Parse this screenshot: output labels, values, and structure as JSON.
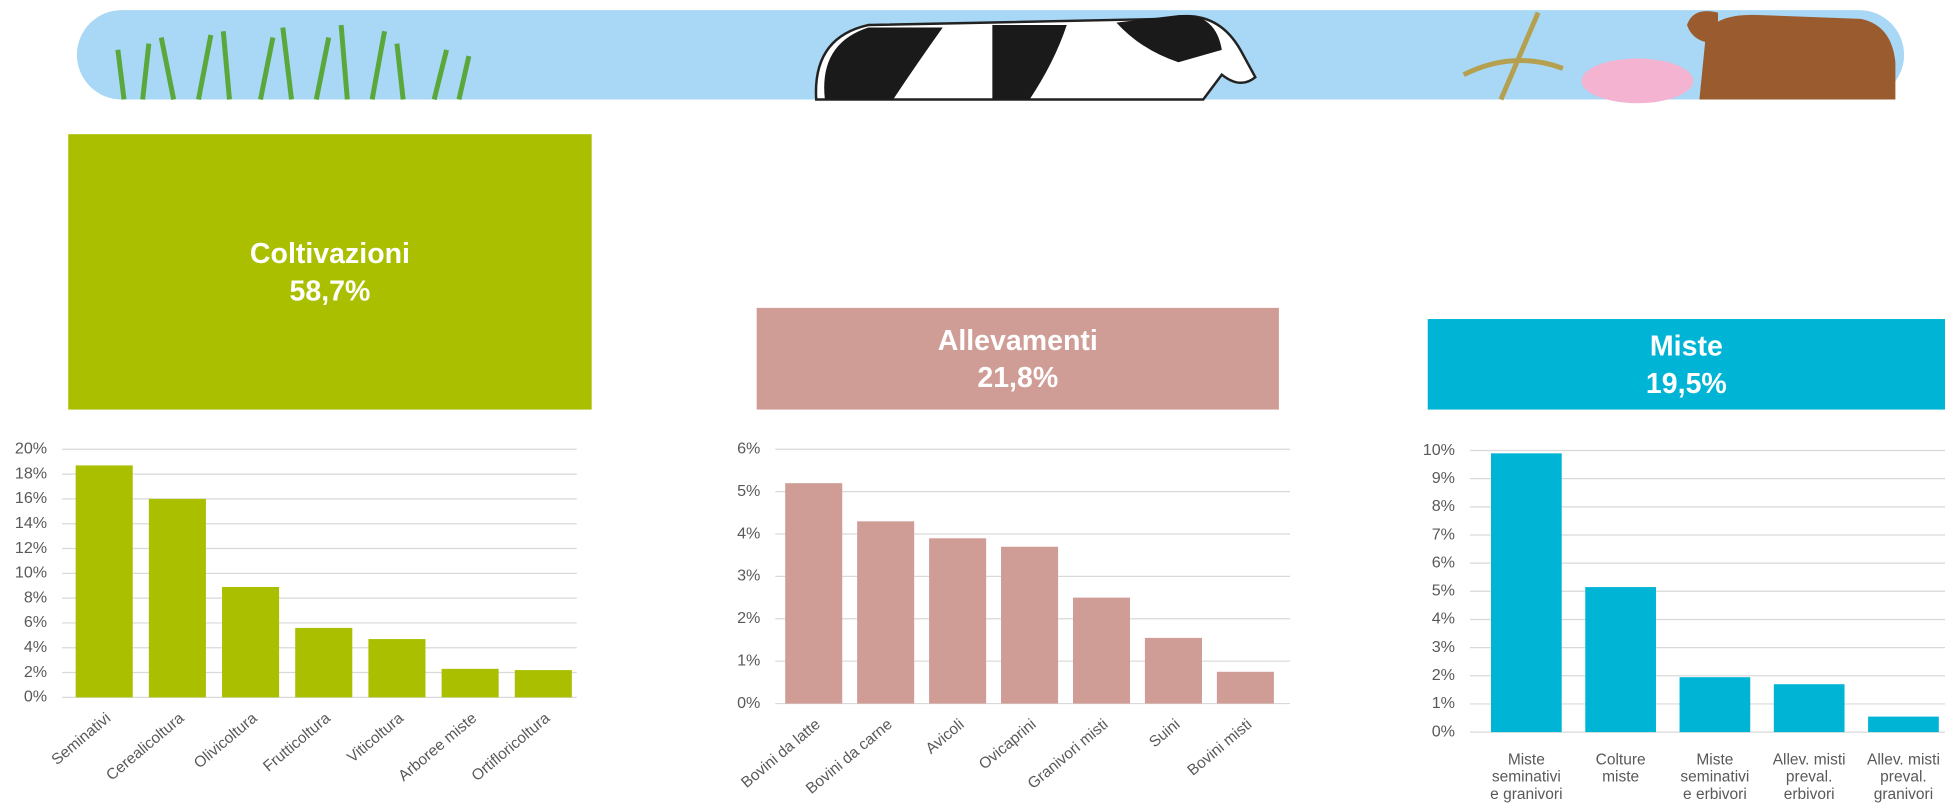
{
  "chart_data": [
    {
      "type": "bar",
      "title": "Coltivazioni",
      "subtitle": "58,7%",
      "color": "#a9bf00",
      "categories": [
        "Seminativi",
        "Cerealicoltura",
        "Olivicoltura",
        "Frutticoltura",
        "Viticoltura",
        "Arboree miste",
        "Ortifloricoltura"
      ],
      "values": [
        18.7,
        16.0,
        8.9,
        5.6,
        4.7,
        2.3,
        2.2
      ],
      "ylim": [
        0,
        20
      ],
      "yticks": [
        {
          "value": 0,
          "label": "0%"
        },
        {
          "value": 2,
          "label": "2%"
        },
        {
          "value": 4,
          "label": "4%"
        },
        {
          "value": 6,
          "label": "6%"
        },
        {
          "value": 8,
          "label": "8%"
        },
        {
          "value": 10,
          "label": "10%"
        },
        {
          "value": 12,
          "label": "12%"
        },
        {
          "value": 14,
          "label": "14%"
        },
        {
          "value": 16,
          "label": "16%"
        },
        {
          "value": 18,
          "label": "18%"
        },
        {
          "value": 20,
          "label": "20%"
        }
      ],
      "grid": true
    },
    {
      "type": "bar",
      "title": "Allevamenti",
      "subtitle": "21,8%",
      "color": "#d09c96",
      "categories": [
        "Bovini da latte",
        "Bovini da carne",
        "Avicoli",
        "Ovicaprini",
        "Granivori misti",
        "Suini",
        "Bovini misti"
      ],
      "values": [
        5.2,
        4.3,
        3.9,
        3.7,
        2.5,
        1.55,
        0.75
      ],
      "ylim": [
        0,
        6
      ],
      "yticks": [
        {
          "value": 0,
          "label": "0%"
        },
        {
          "value": 1,
          "label": "1%"
        },
        {
          "value": 2,
          "label": "2%"
        },
        {
          "value": 3,
          "label": "3%"
        },
        {
          "value": 4,
          "label": "4%"
        },
        {
          "value": 5,
          "label": "5%"
        },
        {
          "value": 6,
          "label": "6%"
        }
      ],
      "grid": true
    },
    {
      "type": "bar",
      "title": "Miste",
      "subtitle": "19,5%",
      "color": "#00b4d5",
      "categories": [
        [
          "Miste",
          "seminativi",
          "e granivori"
        ],
        [
          "Colture",
          "miste"
        ],
        [
          "Miste",
          "seminativi",
          "e erbivori"
        ],
        [
          "Allev. misti",
          "preval.",
          "erbivori"
        ],
        [
          "Allev. misti",
          "preval.",
          "granivori"
        ]
      ],
      "values": [
        9.9,
        5.15,
        1.95,
        1.7,
        0.55
      ],
      "ylim": [
        0,
        10
      ],
      "yticks": [
        {
          "value": 0,
          "label": "0%"
        },
        {
          "value": 1,
          "label": "1%"
        },
        {
          "value": 2,
          "label": "2%"
        },
        {
          "value": 3,
          "label": "3%"
        },
        {
          "value": 4,
          "label": "4%"
        },
        {
          "value": 5,
          "label": "5%"
        },
        {
          "value": 6,
          "label": "6%"
        },
        {
          "value": 7,
          "label": "7%"
        },
        {
          "value": 8,
          "label": "8%"
        },
        {
          "value": 9,
          "label": "9%"
        },
        {
          "value": 10,
          "label": "10%"
        }
      ],
      "grid": true
    }
  ]
}
